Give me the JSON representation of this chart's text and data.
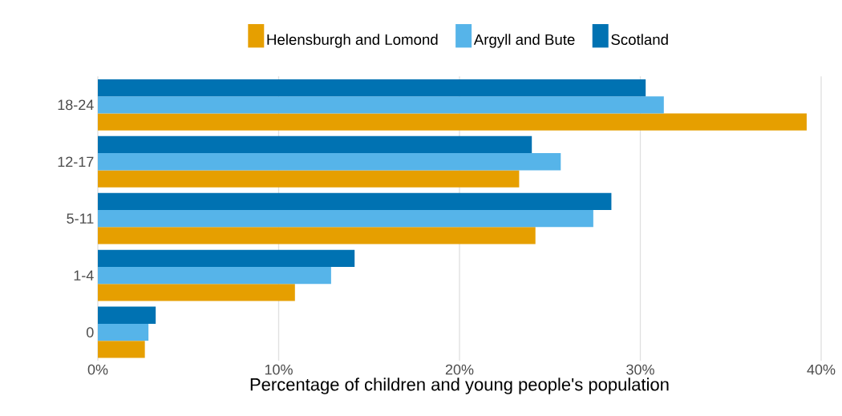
{
  "chart_data": {
    "type": "bar",
    "orientation": "horizontal",
    "xlabel": "Percentage of children and young people's population",
    "categories": [
      "18-24",
      "12-17",
      "5-11",
      "1-4",
      "0"
    ],
    "series": [
      {
        "name": "Helensburgh and Lomond",
        "color": "#e69f00",
        "values": [
          39.2,
          23.3,
          24.2,
          10.9,
          2.6
        ]
      },
      {
        "name": "Argyll and Bute",
        "color": "#56b4e9",
        "values": [
          31.3,
          25.6,
          27.4,
          12.9,
          2.8
        ]
      },
      {
        "name": "Scotland",
        "color": "#0072b2",
        "values": [
          30.3,
          24.0,
          28.4,
          14.2,
          3.2
        ]
      }
    ],
    "xlim": [
      0,
      40
    ],
    "xticks": [
      {
        "value": 0,
        "label": "0%"
      },
      {
        "value": 10,
        "label": "10%"
      },
      {
        "value": 20,
        "label": "20%"
      },
      {
        "value": 30,
        "label": "30%"
      },
      {
        "value": 40,
        "label": "40%"
      }
    ],
    "grid": "x",
    "legend": "top"
  }
}
